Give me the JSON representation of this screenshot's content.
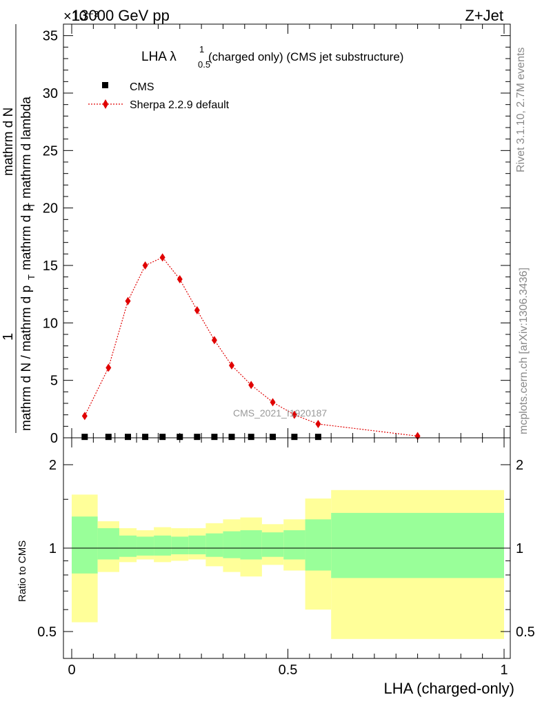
{
  "header": {
    "top_left": "13000 GeV pp",
    "exponent": "×10⁻³",
    "top_right": "Z+Jet"
  },
  "side": {
    "rivet": "Rivet 3.1.10,  2.7M events",
    "mcplots": "mcplots.cern.ch [arXiv:1306.3436]"
  },
  "chart_data": [
    {
      "type": "line",
      "title": "LHA λ",
      "title_sup": "1",
      "title_sub": "0.5",
      "title_rest": "(charged only) (CMS jet substructure)",
      "watermark": "CMS_2021_I1920187",
      "ylabel_num": "1",
      "ylabel_den": "mathrm d N / mathrm d p",
      "ylabel_den_sub": "T",
      "ylabel_den2": "mathrm d N",
      "ylabel_frac_num": "mathrm d",
      "ylabel_frac_num2": "mathrm d lambda",
      "ylabel_full": "mathrm d²N / mathrm d p_T mathrm d lambda",
      "ylim": [
        0,
        36
      ],
      "y_ticks": [
        "0",
        "5",
        "10",
        "15",
        "20",
        "25",
        "30",
        "35"
      ],
      "legend_position": "top-left",
      "legend": [
        "CMS",
        "Sherpa 2.2.9 default"
      ],
      "series": [
        {
          "name": "CMS",
          "color": "#000000",
          "x": [
            0.03,
            0.085,
            0.13,
            0.17,
            0.21,
            0.25,
            0.29,
            0.33,
            0.37,
            0.415,
            0.465,
            0.515,
            0.57
          ],
          "values": [
            0.08,
            0.08,
            0.08,
            0.08,
            0.08,
            0.08,
            0.08,
            0.08,
            0.08,
            0.08,
            0.08,
            0.08,
            0.08
          ]
        },
        {
          "name": "Sherpa 2.2.9 default",
          "color": "#e00000",
          "x": [
            0.03,
            0.085,
            0.13,
            0.17,
            0.21,
            0.25,
            0.29,
            0.33,
            0.37,
            0.415,
            0.465,
            0.515,
            0.57,
            0.8
          ],
          "values": [
            1.9,
            6.1,
            11.9,
            15.0,
            15.7,
            13.8,
            11.1,
            8.5,
            6.3,
            4.6,
            3.1,
            2.0,
            1.2,
            0.15
          ]
        }
      ]
    },
    {
      "type": "area",
      "ylabel": "Ratio to CMS",
      "xlabel": "LHA (charged-only)",
      "xlim": [
        0,
        1
      ],
      "ylim": [
        0.35,
        2.25
      ],
      "x_ticks": [
        "0",
        "0.5",
        "1"
      ],
      "y_ticks": [
        "0.5",
        "1",
        "2"
      ],
      "band_colors": {
        "outer": "#ffff99",
        "inner": "#99ff99"
      },
      "bins": [
        {
          "lo": 0.0,
          "hi": 0.06,
          "inner": [
            0.81,
            1.3
          ],
          "outer": [
            0.54,
            1.56
          ]
        },
        {
          "lo": 0.06,
          "hi": 0.11,
          "inner": [
            0.91,
            1.18
          ],
          "outer": [
            0.82,
            1.25
          ]
        },
        {
          "lo": 0.11,
          "hi": 0.15,
          "inner": [
            0.93,
            1.11
          ],
          "outer": [
            0.89,
            1.18
          ]
        },
        {
          "lo": 0.15,
          "hi": 0.19,
          "inner": [
            0.94,
            1.1
          ],
          "outer": [
            0.91,
            1.16
          ]
        },
        {
          "lo": 0.19,
          "hi": 0.23,
          "inner": [
            0.94,
            1.11
          ],
          "outer": [
            0.89,
            1.19
          ]
        },
        {
          "lo": 0.23,
          "hi": 0.27,
          "inner": [
            0.95,
            1.1
          ],
          "outer": [
            0.9,
            1.18
          ]
        },
        {
          "lo": 0.27,
          "hi": 0.31,
          "inner": [
            0.95,
            1.11
          ],
          "outer": [
            0.91,
            1.18
          ]
        },
        {
          "lo": 0.31,
          "hi": 0.35,
          "inner": [
            0.93,
            1.13
          ],
          "outer": [
            0.86,
            1.23
          ]
        },
        {
          "lo": 0.35,
          "hi": 0.39,
          "inner": [
            0.92,
            1.15
          ],
          "outer": [
            0.82,
            1.27
          ]
        },
        {
          "lo": 0.39,
          "hi": 0.44,
          "inner": [
            0.91,
            1.16
          ],
          "outer": [
            0.79,
            1.29
          ]
        },
        {
          "lo": 0.44,
          "hi": 0.49,
          "inner": [
            0.93,
            1.14
          ],
          "outer": [
            0.87,
            1.22
          ]
        },
        {
          "lo": 0.49,
          "hi": 0.54,
          "inner": [
            0.91,
            1.16
          ],
          "outer": [
            0.83,
            1.27
          ]
        },
        {
          "lo": 0.54,
          "hi": 0.6,
          "inner": [
            0.83,
            1.27
          ],
          "outer": [
            0.6,
            1.51
          ]
        },
        {
          "lo": 0.6,
          "hi": 1.0,
          "inner": [
            0.78,
            1.34
          ],
          "outer": [
            0.47,
            1.62
          ]
        }
      ]
    }
  ]
}
